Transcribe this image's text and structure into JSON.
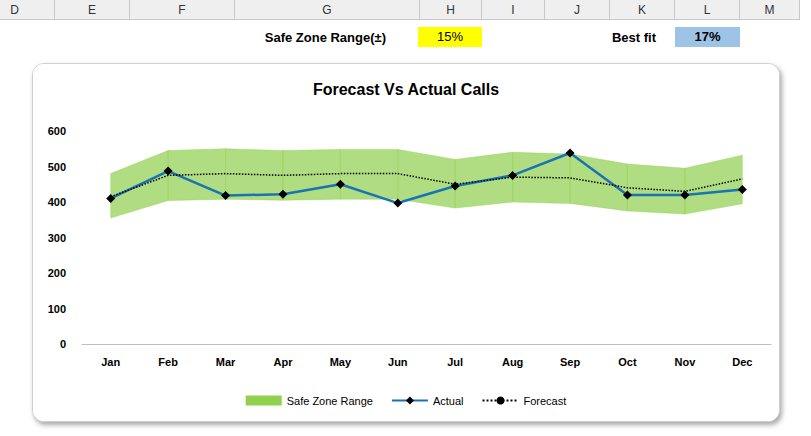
{
  "sheet": {
    "columns": [
      "D",
      "E",
      "F",
      "G",
      "H",
      "I",
      "J",
      "K",
      "L",
      "M"
    ],
    "cells": [
      {
        "label": "Safe Zone Range(±)",
        "value": "15%"
      },
      {
        "label": "Best fit",
        "value": "17%"
      }
    ]
  },
  "chart_data": {
    "type": "line",
    "title": "Forecast Vs Actual Calls",
    "categories": [
      "Jan",
      "Feb",
      "Mar",
      "Apr",
      "May",
      "Jun",
      "Jul",
      "Aug",
      "Sep",
      "Oct",
      "Nov",
      "Dec"
    ],
    "series": [
      {
        "name": "Safe Zone Range",
        "type": "band",
        "color": "#92d050",
        "lower": [
          355,
          404,
          408,
          405,
          408,
          408,
          383,
          400,
          396,
          375,
          366,
          395
        ],
        "upper": [
          480,
          545,
          550,
          545,
          548,
          548,
          520,
          540,
          535,
          507,
          495,
          532
        ]
      },
      {
        "name": "Actual",
        "type": "line",
        "color": "#1a73b3",
        "marker": "diamond",
        "line_style": "solid",
        "values": [
          410,
          487,
          418,
          422,
          450,
          397,
          445,
          475,
          538,
          420,
          420,
          435
        ]
      },
      {
        "name": "Forecast",
        "type": "line",
        "color": "#000000",
        "marker": "none",
        "line_style": "dotted",
        "values": [
          415,
          475,
          480,
          475,
          480,
          480,
          450,
          470,
          468,
          440,
          430,
          465
        ]
      }
    ],
    "ylim": [
      0,
      600
    ],
    "yticks": [
      0,
      100,
      200,
      300,
      400,
      500,
      600
    ],
    "grid": false,
    "legend": "bottom"
  }
}
